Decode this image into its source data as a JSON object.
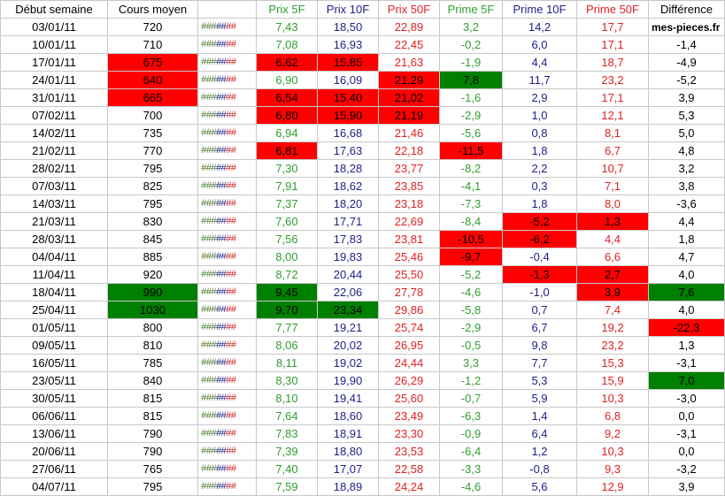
{
  "headers": {
    "date": "Début semaine",
    "cours": "Cours moyen",
    "hash": "",
    "p5": "Prix 5F",
    "p10": "Prix 10F",
    "p50": "Prix 50F",
    "pr5": "Prime 5F",
    "pr10": "Prime 10F",
    "pr50": "Prime 50F",
    "diff": "Différence"
  },
  "source_label": "mes-pieces.fr",
  "hash_segments": [
    "###",
    "##",
    "##"
  ],
  "colors": {
    "highlight_red": "#ff0000",
    "highlight_green": "#008000"
  },
  "rows": [
    {
      "date": "03/01/11",
      "cours": "720",
      "p5": "7,43",
      "p10": "18,50",
      "p50": "22,89",
      "pr5": "3,2",
      "pr10": "14,2",
      "pr50": "17,7",
      "diff": ""
    },
    {
      "date": "10/01/11",
      "cours": "710",
      "p5": "7,08",
      "p10": "16,93",
      "p50": "22,45",
      "pr5": "-0,2",
      "pr10": "6,0",
      "pr50": "17,1",
      "diff": "-1,4"
    },
    {
      "date": "17/01/11",
      "cours": "675",
      "p5": "6,62",
      "p10": "15,85",
      "p50": "21,63",
      "pr5": "-1,9",
      "pr10": "4,4",
      "pr50": "18,7",
      "diff": "-4,9"
    },
    {
      "date": "24/01/11",
      "cours": "640",
      "p5": "6,90",
      "p10": "16,09",
      "p50": "21,29",
      "pr5": "7,8",
      "pr10": "11,7",
      "pr50": "23,2",
      "diff": "-5,2"
    },
    {
      "date": "31/01/11",
      "cours": "665",
      "p5": "6,54",
      "p10": "15,40",
      "p50": "21,02",
      "pr5": "-1,6",
      "pr10": "2,9",
      "pr50": "17,1",
      "diff": "3,9"
    },
    {
      "date": "07/02/11",
      "cours": "700",
      "p5": "6,80",
      "p10": "15,90",
      "p50": "21,19",
      "pr5": "-2,9",
      "pr10": "1,0",
      "pr50": "12,1",
      "diff": "5,3"
    },
    {
      "date": "14/02/11",
      "cours": "735",
      "p5": "6,94",
      "p10": "16,68",
      "p50": "21,46",
      "pr5": "-5,6",
      "pr10": "0,8",
      "pr50": "8,1",
      "diff": "5,0"
    },
    {
      "date": "21/02/11",
      "cours": "770",
      "p5": "6,81",
      "p10": "17,63",
      "p50": "22,18",
      "pr5": "-11,5",
      "pr10": "1,8",
      "pr50": "6,7",
      "diff": "4,8"
    },
    {
      "date": "28/02/11",
      "cours": "795",
      "p5": "7,30",
      "p10": "18,28",
      "p50": "23,77",
      "pr5": "-8,2",
      "pr10": "2,2",
      "pr50": "10,7",
      "diff": "3,2"
    },
    {
      "date": "07/03/11",
      "cours": "825",
      "p5": "7,91",
      "p10": "18,62",
      "p50": "23,85",
      "pr5": "-4,1",
      "pr10": "0,3",
      "pr50": "7,1",
      "diff": "3,8"
    },
    {
      "date": "14/03/11",
      "cours": "795",
      "p5": "7,37",
      "p10": "18,20",
      "p50": "23,18",
      "pr5": "-7,3",
      "pr10": "1,8",
      "pr50": "8,0",
      "diff": "-3,6"
    },
    {
      "date": "21/03/11",
      "cours": "830",
      "p5": "7,60",
      "p10": "17,71",
      "p50": "22,69",
      "pr5": "-8,4",
      "pr10": "-5,2",
      "pr50": "1,3",
      "diff": "4,4"
    },
    {
      "date": "28/03/11",
      "cours": "845",
      "p5": "7,56",
      "p10": "17,83",
      "p50": "23,81",
      "pr5": "-10,5",
      "pr10": "-6,2",
      "pr50": "4,4",
      "diff": "1,8"
    },
    {
      "date": "04/04/11",
      "cours": "885",
      "p5": "8,00",
      "p10": "19,83",
      "p50": "25,46",
      "pr5": "-9,7",
      "pr10": "-0,4",
      "pr50": "6,6",
      "diff": "4,7"
    },
    {
      "date": "11/04/11",
      "cours": "920",
      "p5": "8,72",
      "p10": "20,44",
      "p50": "25,50",
      "pr5": "-5,2",
      "pr10": "-1,3",
      "pr50": "2,7",
      "diff": "4,0"
    },
    {
      "date": "18/04/11",
      "cours": "990",
      "p5": "9,45",
      "p10": "22,06",
      "p50": "27,78",
      "pr5": "-4,6",
      "pr10": "-1,0",
      "pr50": "3,9",
      "diff": "7,6"
    },
    {
      "date": "25/04/11",
      "cours": "1030",
      "p5": "9,70",
      "p10": "23,34",
      "p50": "29,86",
      "pr5": "-5,8",
      "pr10": "0,7",
      "pr50": "7,4",
      "diff": "4,0"
    },
    {
      "date": "01/05/11",
      "cours": "800",
      "p5": "7,77",
      "p10": "19,21",
      "p50": "25,74",
      "pr5": "-2,9",
      "pr10": "6,7",
      "pr50": "19,2",
      "diff": "-22,3"
    },
    {
      "date": "09/05/11",
      "cours": "810",
      "p5": "8,06",
      "p10": "20,02",
      "p50": "26,95",
      "pr5": "-0,5",
      "pr10": "9,8",
      "pr50": "23,2",
      "diff": "1,3"
    },
    {
      "date": "16/05/11",
      "cours": "785",
      "p5": "8,11",
      "p10": "19,02",
      "p50": "24,44",
      "pr5": "3,3",
      "pr10": "7,7",
      "pr50": "15,3",
      "diff": "-3,1"
    },
    {
      "date": "23/05/11",
      "cours": "840",
      "p5": "8,30",
      "p10": "19,90",
      "p50": "26,29",
      "pr5": "-1,2",
      "pr10": "5,3",
      "pr50": "15,9",
      "diff": "7,0"
    },
    {
      "date": "30/05/11",
      "cours": "815",
      "p5": "8,10",
      "p10": "19,41",
      "p50": "25,60",
      "pr5": "-0,7",
      "pr10": "5,9",
      "pr50": "10,3",
      "diff": "-3,0"
    },
    {
      "date": "06/06/11",
      "cours": "815",
      "p5": "7,64",
      "p10": "18,60",
      "p50": "23,49",
      "pr5": "-6,3",
      "pr10": "1,4",
      "pr50": "6,8",
      "diff": "0,0"
    },
    {
      "date": "13/06/11",
      "cours": "790",
      "p5": "7,83",
      "p10": "18,91",
      "p50": "23,30",
      "pr5": "-0,9",
      "pr10": "6,4",
      "pr50": "9,2",
      "diff": "-3,1"
    },
    {
      "date": "20/06/11",
      "cours": "790",
      "p5": "7,39",
      "p10": "18,80",
      "p50": "23,53",
      "pr5": "-6,4",
      "pr10": "1,2",
      "pr50": "10,3",
      "diff": "0,0"
    },
    {
      "date": "27/06/11",
      "cours": "765",
      "p5": "7,40",
      "p10": "17,07",
      "p50": "22,58",
      "pr5": "-3,3",
      "pr10": "-0,8",
      "pr50": "9,3",
      "diff": "-3,2"
    },
    {
      "date": "04/07/11",
      "cours": "795",
      "p5": "7,59",
      "p10": "18,89",
      "p50": "24,24",
      "pr5": "-4,6",
      "pr10": "5,6",
      "pr50": "12,9",
      "diff": "3,9"
    }
  ],
  "highlights": [
    {
      "row": 2,
      "col": "cours",
      "color": "red"
    },
    {
      "row": 2,
      "col": "p5",
      "color": "red"
    },
    {
      "row": 2,
      "col": "p10",
      "color": "red"
    },
    {
      "row": 3,
      "col": "cours",
      "color": "red"
    },
    {
      "row": 3,
      "col": "p50",
      "color": "red"
    },
    {
      "row": 3,
      "col": "pr5",
      "color": "green"
    },
    {
      "row": 4,
      "col": "cours",
      "color": "red"
    },
    {
      "row": 4,
      "col": "p5",
      "color": "red"
    },
    {
      "row": 4,
      "col": "p10",
      "color": "red"
    },
    {
      "row": 4,
      "col": "p50",
      "color": "red"
    },
    {
      "row": 5,
      "col": "p5",
      "color": "red"
    },
    {
      "row": 5,
      "col": "p10",
      "color": "red"
    },
    {
      "row": 5,
      "col": "p50",
      "color": "red"
    },
    {
      "row": 7,
      "col": "p5",
      "color": "red"
    },
    {
      "row": 7,
      "col": "pr5",
      "color": "red"
    },
    {
      "row": 11,
      "col": "pr10",
      "color": "red"
    },
    {
      "row": 11,
      "col": "pr50",
      "color": "red"
    },
    {
      "row": 12,
      "col": "pr5",
      "color": "red"
    },
    {
      "row": 12,
      "col": "pr10",
      "color": "red"
    },
    {
      "row": 13,
      "col": "pr5",
      "color": "red"
    },
    {
      "row": 14,
      "col": "pr10",
      "color": "red"
    },
    {
      "row": 14,
      "col": "pr50",
      "color": "red"
    },
    {
      "row": 15,
      "col": "cours",
      "color": "green"
    },
    {
      "row": 15,
      "col": "p5",
      "color": "green"
    },
    {
      "row": 15,
      "col": "pr50",
      "color": "red"
    },
    {
      "row": 15,
      "col": "diff",
      "color": "green"
    },
    {
      "row": 16,
      "col": "cours",
      "color": "green"
    },
    {
      "row": 16,
      "col": "p5",
      "color": "green"
    },
    {
      "row": 16,
      "col": "p10",
      "color": "green"
    },
    {
      "row": 17,
      "col": "diff",
      "color": "red"
    },
    {
      "row": 20,
      "col": "diff",
      "color": "green"
    }
  ]
}
